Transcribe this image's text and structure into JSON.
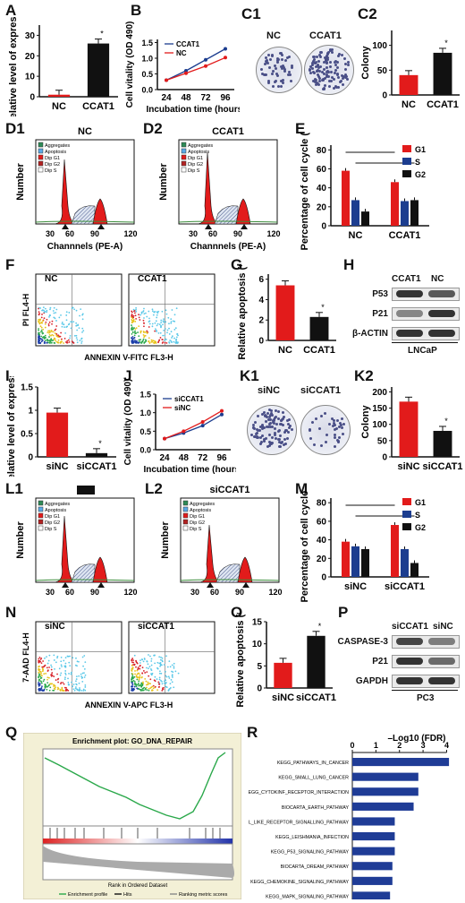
{
  "labels": {
    "A": "A",
    "B": "B",
    "C1": "C1",
    "C2": "C2",
    "D1": "D1",
    "D2": "D2",
    "E": "E",
    "F": "F",
    "G": "G",
    "H": "H",
    "I": "I",
    "J": "J",
    "K1": "K1",
    "K2": "K2",
    "L1": "L1",
    "L2": "L2",
    "M": "M",
    "N": "N",
    "O": "O",
    "P": "P",
    "Q": "Q",
    "R": "R"
  },
  "colors": {
    "red": "#e21b1b",
    "blue": "#1c3d8f",
    "black": "#111111",
    "navy": "#1f3c96"
  },
  "chart_data": [
    {
      "id": "A",
      "type": "bar",
      "categories": [
        "NC",
        "CCAT1"
      ],
      "values": [
        1,
        26
      ],
      "ylabel": "Relative level of expression",
      "yticks": [
        0,
        10,
        20,
        30
      ],
      "ylim": [
        0,
        35
      ],
      "sig": "*"
    },
    {
      "id": "B",
      "type": "line",
      "x": [
        24,
        48,
        72,
        96
      ],
      "xlabel": "Incubation time (hours)",
      "ylabel": "Cell vitality (OD 490)",
      "yticks": [
        0.0,
        0.5,
        1.0,
        1.5
      ],
      "ylim": [
        0,
        1.6
      ],
      "series": [
        {
          "name": "CCAT1",
          "values": [
            0.3,
            0.6,
            0.95,
            1.3
          ]
        },
        {
          "name": "NC",
          "values": [
            0.3,
            0.52,
            0.75,
            1.02
          ]
        }
      ]
    },
    {
      "id": "C2",
      "type": "bar",
      "categories": [
        "NC",
        "CCAT1"
      ],
      "values": [
        40,
        85
      ],
      "ylabel": "Colony",
      "yticks": [
        0,
        50,
        100
      ],
      "ylim": [
        0,
        130
      ],
      "sig": "*"
    },
    {
      "id": "E",
      "type": "bar",
      "categories": [
        "NC",
        "CCAT1"
      ],
      "ylabel": "Percentage of cell cycle (%)",
      "yticks": [
        0,
        20,
        40,
        60,
        80
      ],
      "ylim": [
        0,
        85
      ],
      "series": [
        {
          "name": "G1",
          "values": [
            58,
            46
          ]
        },
        {
          "name": "S",
          "values": [
            27,
            26
          ]
        },
        {
          "name": "G2",
          "values": [
            15,
            27
          ]
        }
      ]
    },
    {
      "id": "G",
      "type": "bar",
      "categories": [
        "NC",
        "CCAT1"
      ],
      "values": [
        5.4,
        2.3
      ],
      "ylabel": "Relative apoptosis (%)",
      "yticks": [
        0,
        2,
        4,
        6
      ],
      "ylim": [
        0,
        6.5
      ],
      "sig": "*"
    },
    {
      "id": "I",
      "type": "bar",
      "categories": [
        "siNC",
        "siCCAT1"
      ],
      "values": [
        0.95,
        0.08
      ],
      "ylabel": "Relative level of expression",
      "yticks": [
        0.0,
        0.5,
        1.0,
        1.5
      ],
      "ylim": [
        0,
        1.5
      ],
      "sig": "*"
    },
    {
      "id": "J",
      "type": "line",
      "x": [
        24,
        48,
        72,
        96
      ],
      "xlabel": "Incubation time (hours)",
      "ylabel": "Cell vitality (OD 490)",
      "yticks": [
        0.0,
        0.5,
        1.0,
        1.5
      ],
      "ylim": [
        0,
        1.5
      ],
      "series": [
        {
          "name": "siCCAT1",
          "values": [
            0.3,
            0.45,
            0.65,
            0.95
          ]
        },
        {
          "name": "siNC",
          "values": [
            0.3,
            0.5,
            0.75,
            1.05
          ]
        }
      ]
    },
    {
      "id": "K2",
      "type": "bar",
      "categories": [
        "siNC",
        "siCCAT1"
      ],
      "values": [
        170,
        80
      ],
      "ylabel": "Colony",
      "yticks": [
        0,
        50,
        100,
        150,
        200
      ],
      "ylim": [
        0,
        215
      ],
      "sig": "*"
    },
    {
      "id": "M",
      "type": "bar",
      "categories": [
        "siNC",
        "siCCAT1"
      ],
      "ylabel": "Percentage of cell cycle (%)",
      "yticks": [
        0,
        20,
        40,
        60,
        80
      ],
      "ylim": [
        0,
        85
      ],
      "series": [
        {
          "name": "G1",
          "values": [
            38,
            56
          ]
        },
        {
          "name": "S",
          "values": [
            33,
            30
          ]
        },
        {
          "name": "G2",
          "values": [
            30,
            15
          ]
        }
      ]
    },
    {
      "id": "O",
      "type": "bar",
      "categories": [
        "siNC",
        "siCCAT1"
      ],
      "values": [
        5.7,
        11.8
      ],
      "ylabel": "Relative apoptosis (%)",
      "yticks": [
        0,
        5,
        10,
        15
      ],
      "ylim": [
        0,
        15
      ],
      "sig": "*"
    },
    {
      "id": "R",
      "type": "bar",
      "orientation": "horizontal",
      "xlabel": "–Log10 (FDR)",
      "xticks": [
        0,
        1,
        2,
        3,
        4
      ],
      "xlim": [
        0,
        4.4
      ],
      "categories": [
        "KEGG_PATHWAYS_IN_CANCER",
        "KEGG_SMALL_LUNG_CANCER",
        "KEGG_CYTOKINF_RECEPTOR_INTERACTION",
        "BIOCARTA_EARTH_PATHWAY",
        "KEGG_TOLL_LIKE_RECEPTOR_SIGNALLING_PATHWAY",
        "KEGG_LEISHMANIA_INFECTION",
        "KEGG_P53_SIGNALING_PATHWAY",
        "BIOCARTA_DREAM_PATHWAY",
        "KEGG_CHEMOKINE_SIGNALING_PATHWAY",
        "KEGG_MAPK_SIGNALING_PATHWAY"
      ],
      "values": [
        4.1,
        2.8,
        2.8,
        2.6,
        1.8,
        1.8,
        1.8,
        1.7,
        1.7,
        1.6
      ]
    }
  ],
  "B": {
    "legend": [
      "CCAT1",
      "NC"
    ]
  },
  "C1": {
    "nc": "NC",
    "ccat1": "CCAT1"
  },
  "D1": {
    "title": "NC"
  },
  "D2": {
    "title": "CCAT1"
  },
  "flow": {
    "legend": [
      "Aggregates",
      "Apoptosis",
      "Dip G1",
      "Dip G2",
      "Dip S"
    ],
    "ylabel": "Number",
    "xlabel": "Channnels (PE-A)",
    "xticks": [
      "30",
      "60",
      "90",
      "120"
    ]
  },
  "F": {
    "nc": "NC",
    "ccat1": "CCAT1",
    "ylabel": "PI FL4-H",
    "xlabel": "ANNEXIN V-FITC FL3-H"
  },
  "H": {
    "cols": [
      "CCAT1",
      "NC"
    ],
    "rows": [
      "P53",
      "P21",
      "β-ACTIN"
    ],
    "caption": "LNCaP"
  },
  "K1": {
    "sinc": "siNC",
    "siccat1": "siCCAT1"
  },
  "L2": {
    "title": "siCCAT1"
  },
  "N": {
    "sinc": "siNC",
    "siccat1": "siCCAT1",
    "ylabel": "7-AAD FL4-H",
    "xlabel": "ANNEXIN V-APC FL3-H"
  },
  "P": {
    "cols": [
      "siCCAT1",
      "siNC"
    ],
    "rows": [
      "CASPASE-3",
      "P21",
      "GAPDH"
    ],
    "caption": "PC3"
  },
  "Q": {
    "title": "Enrichment plot: GO_DNA_REPAIR",
    "legend": [
      "Enrichment profile",
      "Hits",
      "Ranking metric scores"
    ],
    "xlabel": "Rank in Ordered Dataset"
  }
}
